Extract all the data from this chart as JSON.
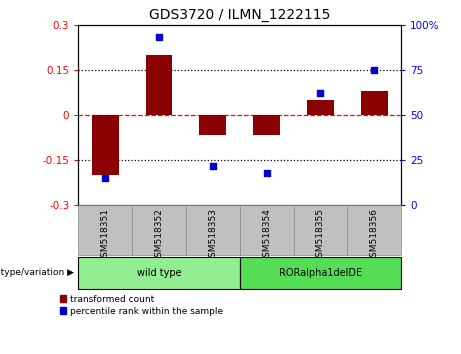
{
  "title": "GDS3720 / ILMN_1222115",
  "samples": [
    "GSM518351",
    "GSM518352",
    "GSM518353",
    "GSM518354",
    "GSM518355",
    "GSM518356"
  ],
  "transformed_count": [
    -0.2,
    0.2,
    -0.065,
    -0.065,
    0.05,
    0.08
  ],
  "percentile_rank": [
    15,
    93,
    22,
    18,
    62,
    75
  ],
  "left_ylim": [
    -0.3,
    0.3
  ],
  "right_ylim": [
    0,
    100
  ],
  "left_yticks": [
    -0.3,
    -0.15,
    0,
    0.15,
    0.3
  ],
  "right_yticks": [
    0,
    25,
    50,
    75,
    100
  ],
  "left_ytick_labels": [
    "-0.3",
    "-0.15",
    "0",
    "0.15",
    "0.3"
  ],
  "right_ytick_labels": [
    "0",
    "25",
    "50",
    "75",
    "100%"
  ],
  "genotype_groups": [
    {
      "label": "wild type",
      "start": 0,
      "end": 3,
      "color": "#90EE90"
    },
    {
      "label": "RORalpha1delDE",
      "start": 3,
      "end": 6,
      "color": "#55DD55"
    }
  ],
  "genotype_label": "genotype/variation",
  "bar_color": "#8B0000",
  "point_color": "#0000CC",
  "bar_width": 0.5,
  "legend_items": [
    {
      "label": "transformed count",
      "color": "#8B0000"
    },
    {
      "label": "percentile rank within the sample",
      "color": "#0000CC"
    }
  ],
  "bg_color": "#FFFFFF",
  "plot_bg_color": "#FFFFFF",
  "tick_label_area_color": "#C0C0C0",
  "title_fontsize": 10,
  "tick_fontsize": 7.5,
  "label_fontsize": 7.5
}
